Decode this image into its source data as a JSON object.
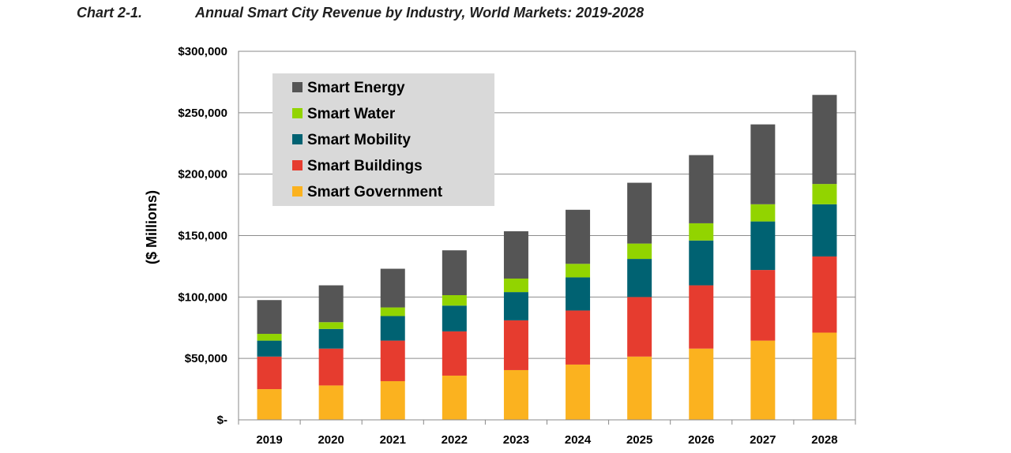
{
  "chart_data": {
    "type": "bar",
    "stacked": true,
    "title_label": "Chart 2-1.",
    "title": "Annual Smart City Revenue by Industry, World Markets: 2019-2028",
    "ylabel": "($ Millions)",
    "xlabel": "",
    "ylim": [
      0,
      300000
    ],
    "yticks": [
      "$-",
      "$50,000",
      "$100,000",
      "$150,000",
      "$200,000",
      "$250,000",
      "$300,000"
    ],
    "grid": true,
    "legend_position": "top-left",
    "categories": [
      "2019",
      "2020",
      "2021",
      "2022",
      "2023",
      "2024",
      "2025",
      "2026",
      "2027",
      "2028"
    ],
    "series": [
      {
        "name": "Smart Government",
        "color": "#fbb21f",
        "values": [
          25000,
          28000,
          31500,
          36000,
          40500,
          45000,
          51500,
          58000,
          64500,
          71000
        ]
      },
      {
        "name": "Smart Buildings",
        "color": "#e63c2f",
        "values": [
          26500,
          30000,
          33000,
          36000,
          40500,
          44000,
          48500,
          51500,
          57500,
          62000
        ]
      },
      {
        "name": "Smart Mobility",
        "color": "#006272",
        "values": [
          13000,
          16000,
          20000,
          21000,
          23000,
          27000,
          31000,
          36500,
          39500,
          42500
        ]
      },
      {
        "name": "Smart Water",
        "color": "#92d400",
        "values": [
          5500,
          5500,
          7000,
          8500,
          11000,
          11000,
          12500,
          14000,
          14000,
          16500
        ]
      },
      {
        "name": "Smart Energy",
        "color": "#555555",
        "values": [
          27500,
          30000,
          31500,
          36500,
          38500,
          44000,
          49500,
          55500,
          65000,
          72500
        ]
      }
    ]
  }
}
